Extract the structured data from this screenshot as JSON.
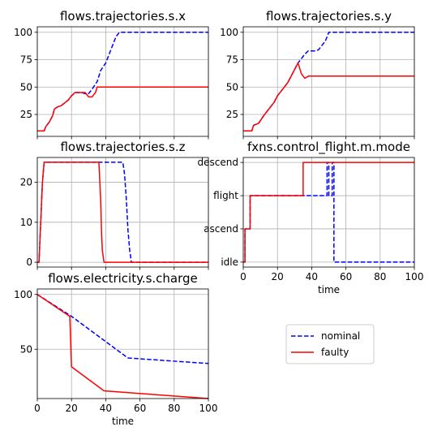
{
  "colors": {
    "nominal": "#0000ff",
    "faulty": "#ff0000",
    "grid": "#b0b0b0"
  },
  "legend": {
    "placement": "lower-right empty panel",
    "entries": [
      {
        "label": "nominal",
        "color": "#0000ff",
        "dash": "dashed"
      },
      {
        "label": "faulty",
        "color": "#ff0000",
        "dash": "solid"
      }
    ]
  },
  "chart_data": [
    {
      "type": "line",
      "title": "flows.trajectories.s.x",
      "xlim": [
        0,
        100
      ],
      "ylim": [
        5,
        105
      ],
      "grid": true,
      "xticks": [
        0,
        20,
        40,
        60,
        80,
        100
      ],
      "xticklabels_shown": false,
      "yticks": [
        25,
        50,
        75,
        100
      ],
      "xlabel": "",
      "ylabel": "",
      "series": [
        {
          "name": "nominal",
          "dash": "dashed",
          "x": [
            0,
            4,
            5,
            7,
            9,
            10,
            12,
            14,
            18,
            20,
            22,
            26,
            28,
            30,
            32,
            35,
            37,
            40,
            42,
            44,
            46,
            48,
            50,
            52,
            100
          ],
          "y": [
            10,
            10,
            14,
            18,
            24,
            30,
            32,
            33,
            38,
            42,
            45,
            45,
            44,
            44,
            48,
            55,
            65,
            72,
            80,
            88,
            96,
            100,
            100,
            100,
            100
          ]
        },
        {
          "name": "faulty",
          "dash": "solid",
          "x": [
            0,
            4,
            5,
            7,
            9,
            10,
            12,
            14,
            18,
            20,
            22,
            28,
            30,
            32,
            34,
            35,
            100
          ],
          "y": [
            10,
            10,
            14,
            18,
            24,
            30,
            32,
            33,
            38,
            42,
            45,
            45,
            41,
            41,
            45,
            50,
            50
          ]
        }
      ]
    },
    {
      "type": "line",
      "title": "flows.trajectories.s.y",
      "xlim": [
        0,
        100
      ],
      "ylim": [
        5,
        105
      ],
      "grid": true,
      "xticks": [
        0,
        20,
        40,
        60,
        80,
        100
      ],
      "xticklabels_shown": false,
      "yticks": [
        25,
        50,
        75,
        100
      ],
      "xlabel": "",
      "ylabel": "",
      "series": [
        {
          "name": "nominal",
          "dash": "dashed",
          "x": [
            0,
            5,
            6,
            9,
            12,
            15,
            18,
            20,
            22,
            24,
            26,
            28,
            30,
            32,
            34,
            36,
            38,
            40,
            42,
            44,
            48,
            50,
            52,
            100
          ],
          "y": [
            10,
            10,
            15,
            17,
            24,
            30,
            36,
            42,
            46,
            50,
            54,
            60,
            66,
            72,
            76,
            80,
            83,
            83,
            83,
            84,
            92,
            100,
            100,
            100
          ]
        },
        {
          "name": "faulty",
          "dash": "solid",
          "x": [
            0,
            5,
            6,
            9,
            12,
            15,
            18,
            20,
            22,
            24,
            26,
            28,
            30,
            32,
            34,
            36,
            38,
            100
          ],
          "y": [
            10,
            10,
            15,
            17,
            24,
            30,
            36,
            42,
            46,
            50,
            54,
            60,
            66,
            72,
            62,
            58,
            60,
            60
          ]
        }
      ]
    },
    {
      "type": "line",
      "title": "flows.trajectories.s.z",
      "xlim": [
        0,
        100
      ],
      "ylim": [
        -1.2,
        26.2
      ],
      "grid": true,
      "xticks": [
        0,
        20,
        40,
        60,
        80,
        100
      ],
      "xticklabels_shown": false,
      "yticks": [
        0,
        10,
        20
      ],
      "xlabel": "",
      "ylabel": "",
      "series": [
        {
          "name": "nominal",
          "dash": "dashed",
          "x": [
            0,
            1,
            2,
            3,
            4,
            50,
            51,
            52,
            53,
            54,
            55,
            56,
            100
          ],
          "y": [
            0,
            0,
            10,
            20,
            25,
            25,
            22,
            16,
            8,
            3,
            0,
            0,
            0
          ]
        },
        {
          "name": "faulty",
          "dash": "solid",
          "x": [
            0,
            1,
            2,
            3,
            4,
            36,
            37,
            37.5,
            38,
            39,
            40,
            100
          ],
          "y": [
            0,
            0,
            10,
            20,
            25,
            25,
            16,
            8,
            3,
            0,
            0,
            0
          ]
        }
      ]
    },
    {
      "type": "line",
      "title": "fxns.control_flight.m.mode",
      "xlim": [
        0,
        100
      ],
      "ylim": [
        -0.15,
        3.15
      ],
      "grid": true,
      "xticks": [
        0,
        20,
        40,
        60,
        80,
        100
      ],
      "xticklabels_shown": true,
      "yticks": [
        0,
        1,
        2,
        3
      ],
      "ytick_labels": [
        "idle",
        "ascend",
        "flight",
        "descend"
      ],
      "xlabel": "time",
      "ylabel": "",
      "series": [
        {
          "name": "nominal",
          "dash": "dashed",
          "x": [
            0,
            1,
            1,
            4,
            4,
            49,
            49,
            50,
            50,
            52,
            52,
            53,
            53,
            100
          ],
          "y": [
            0,
            0,
            1,
            1,
            2,
            2,
            3,
            3,
            2,
            2,
            3,
            3,
            0,
            0
          ]
        },
        {
          "name": "faulty",
          "dash": "solid",
          "x": [
            0,
            1,
            1,
            4,
            4,
            35,
            35,
            100
          ],
          "y": [
            0,
            0,
            1,
            1,
            2,
            2,
            3,
            3
          ]
        }
      ]
    },
    {
      "type": "line",
      "title": "flows.electricity.s.charge",
      "xlim": [
        0,
        100
      ],
      "ylim": [
        5,
        105
      ],
      "grid": true,
      "xticks": [
        0,
        20,
        40,
        60,
        80,
        100
      ],
      "xticklabels_shown": true,
      "yticks": [
        50,
        100
      ],
      "xlabel": "time",
      "ylabel": "",
      "series": [
        {
          "name": "nominal",
          "dash": "dashed",
          "x": [
            0,
            20,
            53,
            100
          ],
          "y": [
            100,
            80,
            42,
            37
          ]
        },
        {
          "name": "faulty",
          "dash": "solid",
          "x": [
            0,
            19,
            20,
            39,
            100
          ],
          "y": [
            100,
            80,
            34,
            12,
            5
          ]
        }
      ]
    }
  ]
}
